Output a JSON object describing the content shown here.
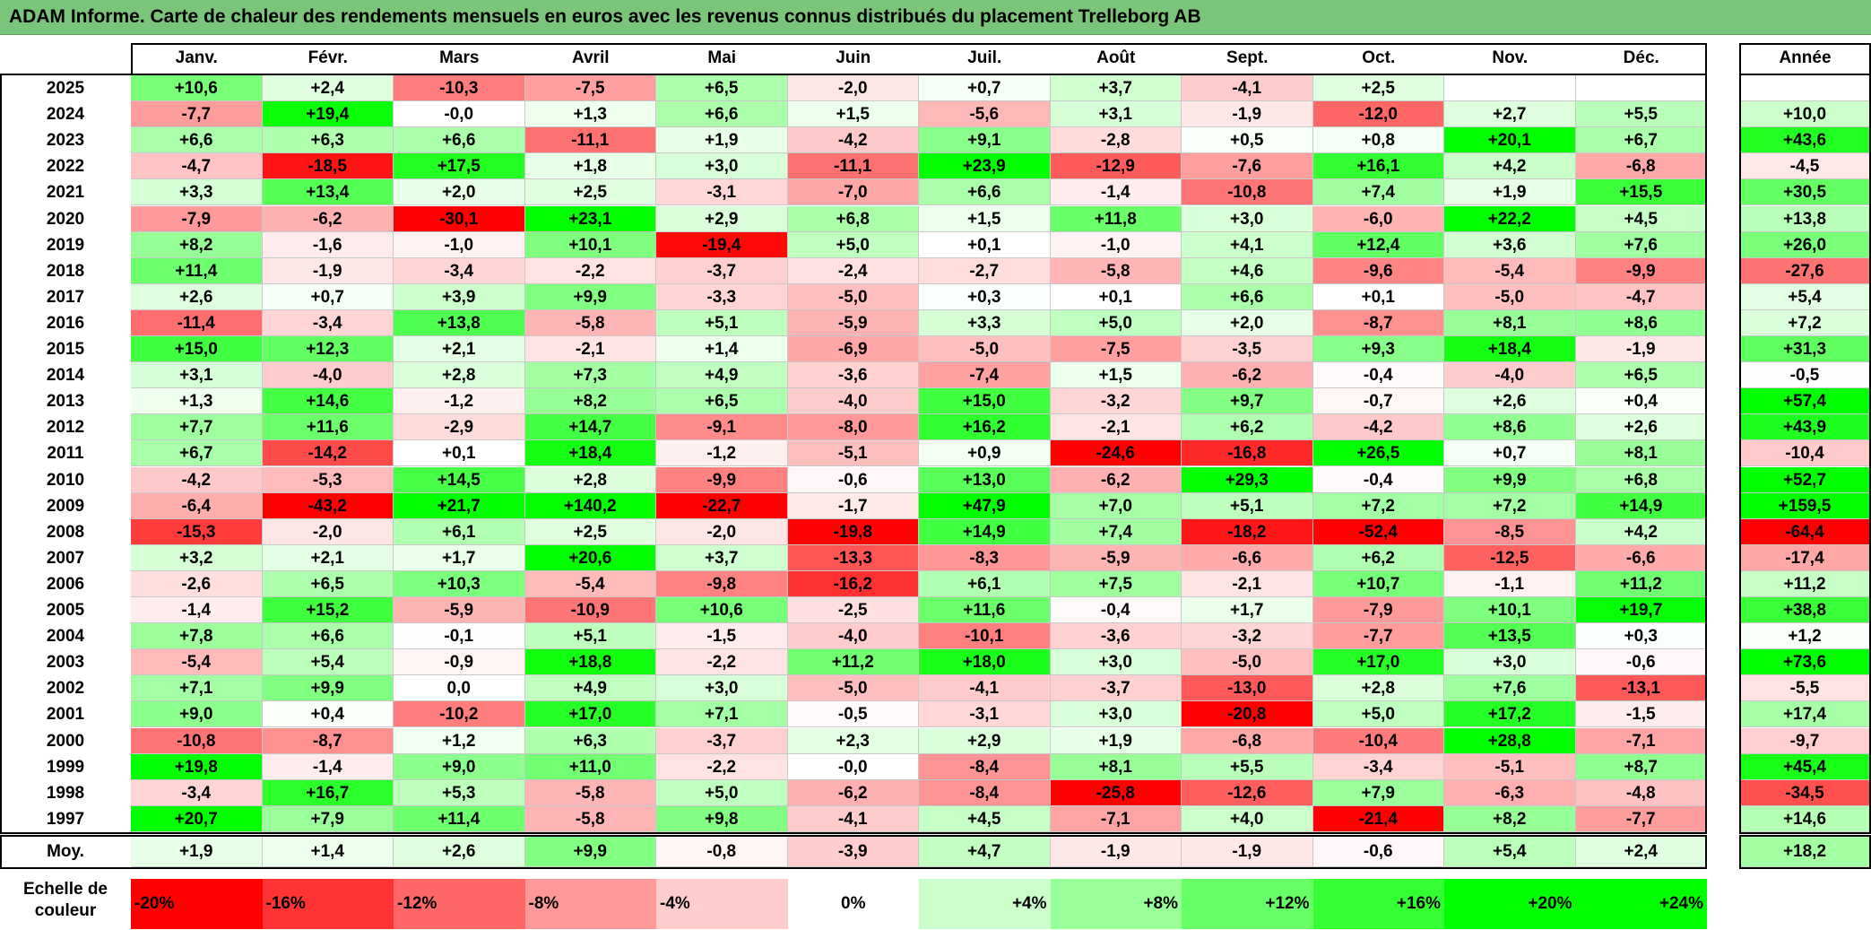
{
  "title": "ADAM Informe. Carte de chaleur des rendements mensuels en euros avec les revenus connus distribués du placement Trelleborg AB",
  "chart_data": {
    "type": "heatmap",
    "title": "ADAM Informe. Carte de chaleur des rendements mensuels en euros avec les revenus connus distribués du placement Trelleborg AB",
    "columns": [
      "Janv.",
      "Févr.",
      "Mars",
      "Avril",
      "Mai",
      "Juin",
      "Juil.",
      "Août",
      "Sept.",
      "Oct.",
      "Nov.",
      "Déc."
    ],
    "annual_header": "Année",
    "rows": [
      {
        "year": "2025",
        "values": [
          "+10,6",
          "+2,4",
          "-10,3",
          "-7,5",
          "+6,5",
          "-2,0",
          "+0,7",
          "+3,7",
          "-4,1",
          "+2,5",
          "",
          ""
        ],
        "annual": ""
      },
      {
        "year": "2024",
        "values": [
          "-7,7",
          "+19,4",
          "-0,0",
          "+1,3",
          "+6,6",
          "+1,5",
          "-5,6",
          "+3,1",
          "-1,9",
          "-12,0",
          "+2,7",
          "+5,5"
        ],
        "annual": "+10,0"
      },
      {
        "year": "2023",
        "values": [
          "+6,6",
          "+6,3",
          "+6,6",
          "-11,1",
          "+1,9",
          "-4,2",
          "+9,1",
          "-2,8",
          "+0,5",
          "+0,8",
          "+20,1",
          "+6,7"
        ],
        "annual": "+43,6"
      },
      {
        "year": "2022",
        "values": [
          "-4,7",
          "-18,5",
          "+17,5",
          "+1,8",
          "+3,0",
          "-11,1",
          "+23,9",
          "-12,9",
          "-7,6",
          "+16,1",
          "+4,2",
          "-6,8"
        ],
        "annual": "-4,5"
      },
      {
        "year": "2021",
        "values": [
          "+3,3",
          "+13,4",
          "+2,0",
          "+2,5",
          "-3,1",
          "-7,0",
          "+6,6",
          "-1,4",
          "-10,8",
          "+7,4",
          "+1,9",
          "+15,5"
        ],
        "annual": "+30,5"
      },
      {
        "year": "2020",
        "values": [
          "-7,9",
          "-6,2",
          "-30,1",
          "+23,1",
          "+2,9",
          "+6,8",
          "+1,5",
          "+11,8",
          "+3,0",
          "-6,0",
          "+22,2",
          "+4,5"
        ],
        "annual": "+13,8"
      },
      {
        "year": "2019",
        "values": [
          "+8,2",
          "-1,6",
          "-1,0",
          "+10,1",
          "-19,4",
          "+5,0",
          "+0,1",
          "-1,0",
          "+4,1",
          "+12,4",
          "+3,6",
          "+7,6"
        ],
        "annual": "+26,0"
      },
      {
        "year": "2018",
        "values": [
          "+11,4",
          "-1,9",
          "-3,4",
          "-2,2",
          "-3,7",
          "-2,4",
          "-2,7",
          "-5,8",
          "+4,6",
          "-9,6",
          "-5,4",
          "-9,9"
        ],
        "annual": "-27,6"
      },
      {
        "year": "2017",
        "values": [
          "+2,6",
          "+0,7",
          "+3,9",
          "+9,9",
          "-3,3",
          "-5,0",
          "+0,3",
          "+0,1",
          "+6,6",
          "+0,1",
          "-5,0",
          "-4,7"
        ],
        "annual": "+5,4"
      },
      {
        "year": "2016",
        "values": [
          "-11,4",
          "-3,4",
          "+13,8",
          "-5,8",
          "+5,1",
          "-5,9",
          "+3,3",
          "+5,0",
          "+2,0",
          "-8,7",
          "+8,1",
          "+8,6"
        ],
        "annual": "+7,2"
      },
      {
        "year": "2015",
        "values": [
          "+15,0",
          "+12,3",
          "+2,1",
          "-2,1",
          "+1,4",
          "-6,9",
          "-5,0",
          "-7,5",
          "-3,5",
          "+9,3",
          "+18,4",
          "-1,9"
        ],
        "annual": "+31,3"
      },
      {
        "year": "2014",
        "values": [
          "+3,1",
          "-4,0",
          "+2,8",
          "+7,3",
          "+4,9",
          "-3,6",
          "-7,4",
          "+1,5",
          "-6,2",
          "-0,4",
          "-4,0",
          "+6,5"
        ],
        "annual": "-0,5"
      },
      {
        "year": "2013",
        "values": [
          "+1,3",
          "+14,6",
          "-1,2",
          "+8,2",
          "+6,5",
          "-4,0",
          "+15,0",
          "-3,2",
          "+9,7",
          "-0,7",
          "+2,6",
          "+0,4"
        ],
        "annual": "+57,4"
      },
      {
        "year": "2012",
        "values": [
          "+7,7",
          "+11,6",
          "-2,9",
          "+14,7",
          "-9,1",
          "-8,0",
          "+16,2",
          "-2,1",
          "+6,2",
          "-4,2",
          "+8,6",
          "+2,6"
        ],
        "annual": "+43,9"
      },
      {
        "year": "2011",
        "values": [
          "+6,7",
          "-14,2",
          "+0,1",
          "+18,4",
          "-1,2",
          "-5,1",
          "+0,9",
          "-24,6",
          "-16,8",
          "+26,5",
          "+0,7",
          "+8,1"
        ],
        "annual": "-10,4"
      },
      {
        "year": "2010",
        "values": [
          "-4,2",
          "-5,3",
          "+14,5",
          "+2,8",
          "-9,9",
          "-0,6",
          "+13,0",
          "-6,2",
          "+29,3",
          "-0,4",
          "+9,9",
          "+6,8"
        ],
        "annual": "+52,7"
      },
      {
        "year": "2009",
        "values": [
          "-6,4",
          "-43,2",
          "+21,7",
          "+140,2",
          "-22,7",
          "-1,7",
          "+47,9",
          "+7,0",
          "+5,1",
          "+7,2",
          "+7,2",
          "+14,9"
        ],
        "annual": "+159,5"
      },
      {
        "year": "2008",
        "values": [
          "-15,3",
          "-2,0",
          "+6,1",
          "+2,5",
          "-2,0",
          "-19,8",
          "+14,9",
          "+7,4",
          "-18,2",
          "-52,4",
          "-8,5",
          "+4,2"
        ],
        "annual": "-64,4"
      },
      {
        "year": "2007",
        "values": [
          "+3,2",
          "+2,1",
          "+1,7",
          "+20,6",
          "+3,7",
          "-13,3",
          "-8,3",
          "-5,9",
          "-6,6",
          "+6,2",
          "-12,5",
          "-6,6"
        ],
        "annual": "-17,4"
      },
      {
        "year": "2006",
        "values": [
          "-2,6",
          "+6,5",
          "+10,3",
          "-5,4",
          "-9,8",
          "-16,2",
          "+6,1",
          "+7,5",
          "-2,1",
          "+10,7",
          "-1,1",
          "+11,2"
        ],
        "annual": "+11,2"
      },
      {
        "year": "2005",
        "values": [
          "-1,4",
          "+15,2",
          "-5,9",
          "-10,9",
          "+10,6",
          "-2,5",
          "+11,6",
          "-0,4",
          "+1,7",
          "-7,9",
          "+10,1",
          "+19,7"
        ],
        "annual": "+38,8"
      },
      {
        "year": "2004",
        "values": [
          "+7,8",
          "+6,6",
          "-0,1",
          "+5,1",
          "-1,5",
          "-4,0",
          "-10,1",
          "-3,6",
          "-3,2",
          "-7,7",
          "+13,5",
          "+0,3"
        ],
        "annual": "+1,2"
      },
      {
        "year": "2003",
        "values": [
          "-5,4",
          "+5,4",
          "-0,9",
          "+18,8",
          "-2,2",
          "+11,2",
          "+18,0",
          "+3,0",
          "-5,0",
          "+17,0",
          "+3,0",
          "-0,6"
        ],
        "annual": "+73,6"
      },
      {
        "year": "2002",
        "values": [
          "+7,1",
          "+9,9",
          "0,0",
          "+4,9",
          "+3,0",
          "-5,0",
          "-4,1",
          "-3,7",
          "-13,0",
          "+2,8",
          "+7,6",
          "-13,1"
        ],
        "annual": "-5,5"
      },
      {
        "year": "2001",
        "values": [
          "+9,0",
          "+0,4",
          "-10,2",
          "+17,0",
          "+7,1",
          "-0,5",
          "-3,1",
          "+3,0",
          "-20,8",
          "+5,0",
          "+17,2",
          "-1,5"
        ],
        "annual": "+17,4"
      },
      {
        "year": "2000",
        "values": [
          "-10,8",
          "-8,7",
          "+1,2",
          "+6,3",
          "-3,7",
          "+2,3",
          "+2,9",
          "+1,9",
          "-6,8",
          "-10,4",
          "+28,8",
          "-7,1"
        ],
        "annual": "-9,7"
      },
      {
        "year": "1999",
        "values": [
          "+19,8",
          "-1,4",
          "+9,0",
          "+11,0",
          "-2,2",
          "-0,0",
          "-8,4",
          "+8,1",
          "+5,5",
          "-3,4",
          "-5,1",
          "+8,7"
        ],
        "annual": "+45,4"
      },
      {
        "year": "1998",
        "values": [
          "-3,4",
          "+16,7",
          "+5,3",
          "-5,8",
          "+5,0",
          "-6,2",
          "-8,4",
          "-25,8",
          "-12,6",
          "+7,9",
          "-6,3",
          "-4,8"
        ],
        "annual": "-34,5"
      },
      {
        "year": "1997",
        "values": [
          "+20,7",
          "+7,9",
          "+11,4",
          "-5,8",
          "+9,8",
          "-4,1",
          "+4,5",
          "-7,1",
          "+4,0",
          "-21,4",
          "+8,2",
          "-7,7"
        ],
        "annual": "+14,6"
      }
    ],
    "average": {
      "label": "Moy.",
      "values": [
        "+1,9",
        "+1,4",
        "+2,6",
        "+9,9",
        "-0,8",
        "-3,9",
        "+4,7",
        "-1,9",
        "-1,9",
        "-0,6",
        "+5,4",
        "+2,4"
      ],
      "annual": "+18,2"
    },
    "color_scale": {
      "label": "Echelle de couleur",
      "steps": [
        "-20%",
        "-16%",
        "-12%",
        "-8%",
        "-4%",
        "0%",
        "+4%",
        "+8%",
        "+12%",
        "+16%",
        "+20%",
        "+24%"
      ],
      "negative_color": "#ff0000",
      "neutral_color": "#ffffff",
      "positive_color": "#00ff00"
    }
  }
}
